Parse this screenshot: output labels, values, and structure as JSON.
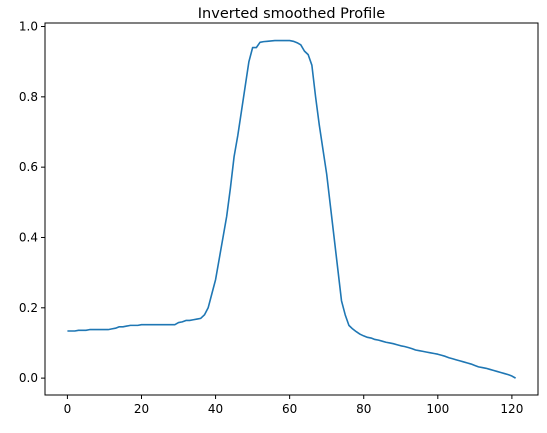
{
  "chart_data": {
    "type": "line",
    "title": "Inverted smoothed Profile",
    "xlabel": "",
    "ylabel": "",
    "xlim": [
      -6.05,
      127.05
    ],
    "ylim": [
      -0.048,
      1.01
    ],
    "grid": false,
    "x_ticks": [
      0,
      20,
      40,
      60,
      80,
      100,
      120
    ],
    "x_tick_labels": [
      "0",
      "20",
      "40",
      "60",
      "80",
      "100",
      "120"
    ],
    "y_ticks": [
      0.0,
      0.2,
      0.4,
      0.6,
      0.8,
      1.0
    ],
    "y_tick_labels": [
      "0.0",
      "0.2",
      "0.4",
      "0.6",
      "0.8",
      "1.0"
    ],
    "series": [
      {
        "color": "#1f77b4",
        "x": [
          0,
          1,
          2,
          3,
          4,
          5,
          6,
          7,
          8,
          9,
          10,
          11,
          12,
          13,
          14,
          15,
          16,
          17,
          18,
          19,
          20,
          21,
          22,
          23,
          24,
          25,
          26,
          27,
          28,
          29,
          30,
          31,
          32,
          33,
          34,
          35,
          36,
          37,
          38,
          39,
          40,
          41,
          42,
          43,
          44,
          45,
          46,
          47,
          48,
          49,
          50,
          51,
          52,
          53,
          54,
          55,
          56,
          57,
          58,
          59,
          60,
          61,
          62,
          63,
          64,
          65,
          66,
          67,
          68,
          69,
          70,
          71,
          72,
          73,
          74,
          75,
          76,
          77,
          78,
          79,
          80,
          81,
          82,
          83,
          84,
          85,
          86,
          87,
          88,
          89,
          90,
          91,
          92,
          93,
          94,
          95,
          96,
          97,
          98,
          99,
          100,
          101,
          102,
          103,
          104,
          105,
          106,
          107,
          108,
          109,
          110,
          111,
          112,
          113,
          114,
          115,
          116,
          117,
          118,
          119,
          120,
          121
        ],
        "y": [
          0.134,
          0.134,
          0.134,
          0.136,
          0.136,
          0.136,
          0.138,
          0.138,
          0.138,
          0.138,
          0.138,
          0.138,
          0.14,
          0.142,
          0.146,
          0.146,
          0.148,
          0.15,
          0.15,
          0.15,
          0.152,
          0.152,
          0.152,
          0.152,
          0.152,
          0.152,
          0.152,
          0.152,
          0.152,
          0.152,
          0.158,
          0.16,
          0.164,
          0.164,
          0.166,
          0.168,
          0.17,
          0.18,
          0.2,
          0.24,
          0.28,
          0.34,
          0.4,
          0.46,
          0.54,
          0.63,
          0.69,
          0.76,
          0.83,
          0.9,
          0.94,
          0.94,
          0.955,
          0.957,
          0.958,
          0.959,
          0.96,
          0.96,
          0.96,
          0.96,
          0.96,
          0.958,
          0.954,
          0.948,
          0.93,
          0.92,
          0.89,
          0.8,
          0.72,
          0.65,
          0.58,
          0.49,
          0.4,
          0.31,
          0.22,
          0.18,
          0.15,
          0.14,
          0.132,
          0.125,
          0.12,
          0.116,
          0.114,
          0.11,
          0.108,
          0.105,
          0.102,
          0.1,
          0.098,
          0.095,
          0.092,
          0.09,
          0.087,
          0.084,
          0.08,
          0.078,
          0.076,
          0.074,
          0.072,
          0.07,
          0.068,
          0.065,
          0.062,
          0.058,
          0.055,
          0.052,
          0.049,
          0.046,
          0.043,
          0.04,
          0.036,
          0.032,
          0.03,
          0.028,
          0.025,
          0.022,
          0.019,
          0.016,
          0.013,
          0.01,
          0.006,
          0.0
        ]
      }
    ]
  }
}
